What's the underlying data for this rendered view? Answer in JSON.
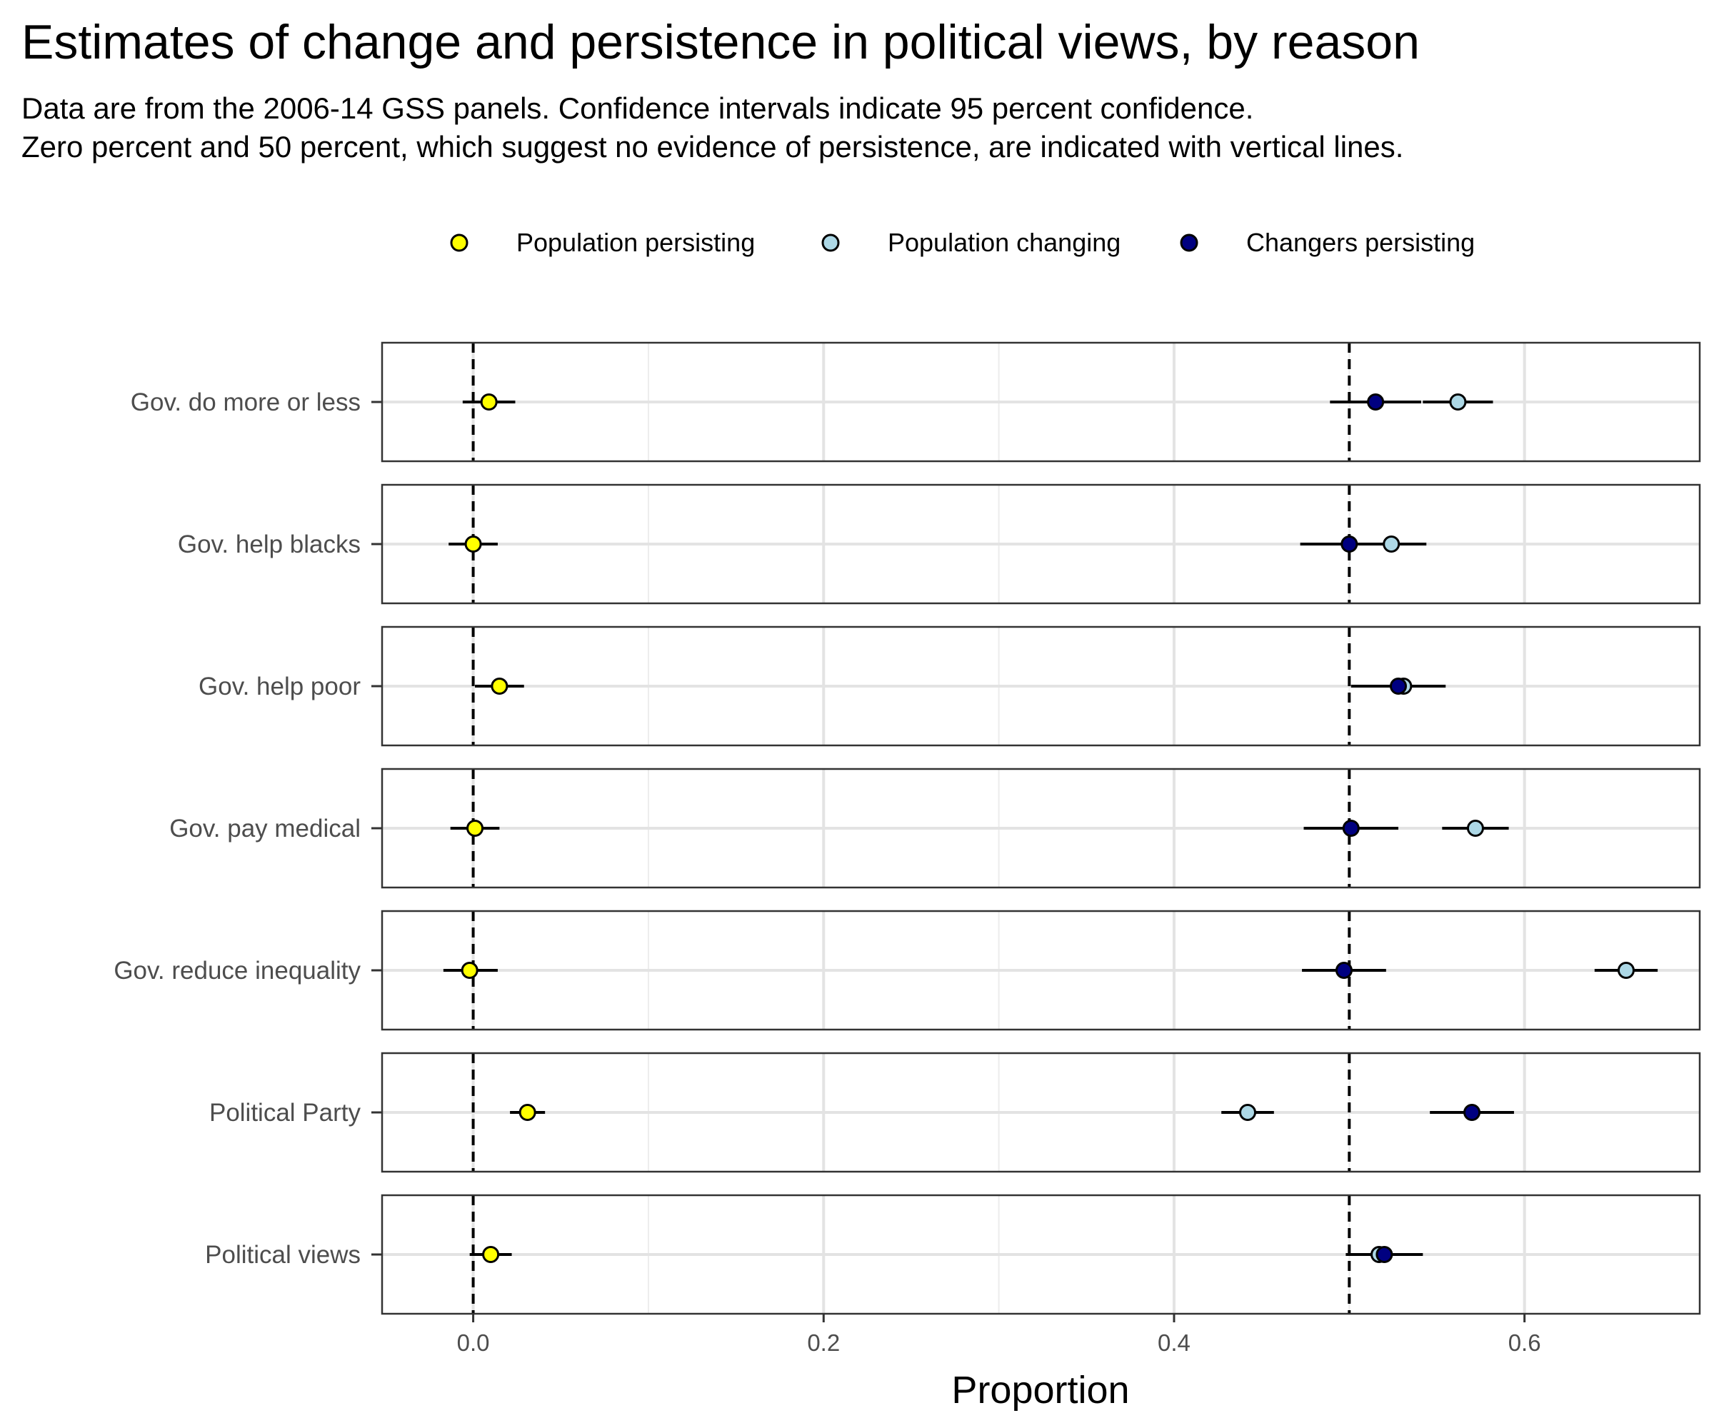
{
  "chart_data": {
    "type": "dot-whisker",
    "title": "Estimates of change and persistence in political views, by reason",
    "subtitle_lines": [
      "Data are from the 2006-14 GSS panels. Confidence intervals indicate 95 percent confidence.",
      "Zero percent and 50 percent, which suggest no evidence of persistence, are indicated with vertical lines."
    ],
    "xlabel": "Proportion",
    "ylabel": "",
    "xlim": [
      -0.052,
      0.7
    ],
    "xticks": [
      0.0,
      0.2,
      0.4,
      0.6
    ],
    "xtick_labels": [
      "0.0",
      "0.2",
      "0.4",
      "0.6"
    ],
    "reference_lines": [
      0.0,
      0.5
    ],
    "grid": true,
    "legend_position": "top",
    "series": [
      {
        "name": "Population persisting",
        "color": "#ffff00"
      },
      {
        "name": "Population changing",
        "color": "#add8e6"
      },
      {
        "name": "Changers persisting",
        "color": "#000080"
      }
    ],
    "categories": [
      "Gov. do more or less",
      "Gov. help blacks",
      "Gov. help poor",
      "Gov. pay medical",
      "Gov. reduce inequality",
      "Political Party",
      "Political views"
    ],
    "rows": [
      {
        "category": "Gov. do more or less",
        "points": [
          {
            "series": "Population persisting",
            "value": 0.009,
            "low": -0.006,
            "high": 0.024
          },
          {
            "series": "Population changing",
            "value": 0.562,
            "low": 0.542,
            "high": 0.582
          },
          {
            "series": "Changers persisting",
            "value": 0.515,
            "low": 0.489,
            "high": 0.541
          }
        ]
      },
      {
        "category": "Gov. help blacks",
        "points": [
          {
            "series": "Population persisting",
            "value": 0.0,
            "low": -0.014,
            "high": 0.014
          },
          {
            "series": "Population changing",
            "value": 0.524,
            "low": 0.504,
            "high": 0.544
          },
          {
            "series": "Changers persisting",
            "value": 0.5,
            "low": 0.472,
            "high": 0.528
          }
        ]
      },
      {
        "category": "Gov. help poor",
        "points": [
          {
            "series": "Population persisting",
            "value": 0.015,
            "low": 0.001,
            "high": 0.029
          },
          {
            "series": "Population changing",
            "value": 0.531,
            "low": 0.511,
            "high": 0.551
          },
          {
            "series": "Changers persisting",
            "value": 0.528,
            "low": 0.501,
            "high": 0.555
          }
        ]
      },
      {
        "category": "Gov. pay medical",
        "points": [
          {
            "series": "Population persisting",
            "value": 0.001,
            "low": -0.013,
            "high": 0.015
          },
          {
            "series": "Population changing",
            "value": 0.572,
            "low": 0.553,
            "high": 0.591
          },
          {
            "series": "Changers persisting",
            "value": 0.501,
            "low": 0.474,
            "high": 0.528
          }
        ]
      },
      {
        "category": "Gov. reduce inequality",
        "points": [
          {
            "series": "Population persisting",
            "value": -0.002,
            "low": -0.017,
            "high": 0.014
          },
          {
            "series": "Population changing",
            "value": 0.658,
            "low": 0.64,
            "high": 0.676
          },
          {
            "series": "Changers persisting",
            "value": 0.497,
            "low": 0.473,
            "high": 0.521
          }
        ]
      },
      {
        "category": "Political Party",
        "points": [
          {
            "series": "Population persisting",
            "value": 0.031,
            "low": 0.021,
            "high": 0.041
          },
          {
            "series": "Population changing",
            "value": 0.442,
            "low": 0.427,
            "high": 0.457
          },
          {
            "series": "Changers persisting",
            "value": 0.57,
            "low": 0.546,
            "high": 0.594
          }
        ]
      },
      {
        "category": "Political views",
        "points": [
          {
            "series": "Population persisting",
            "value": 0.01,
            "low": -0.002,
            "high": 0.022
          },
          {
            "series": "Population changing",
            "value": 0.517,
            "low": 0.499,
            "high": 0.535
          },
          {
            "series": "Changers persisting",
            "value": 0.52,
            "low": 0.498,
            "high": 0.542
          }
        ]
      }
    ]
  }
}
